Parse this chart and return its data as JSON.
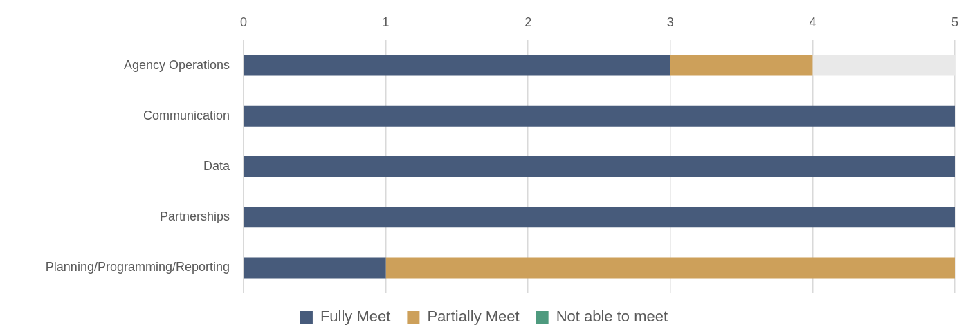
{
  "chart_data": {
    "type": "bar",
    "orientation": "horizontal",
    "stacked": true,
    "categories": [
      "Agency Operations",
      "Communication",
      "Data",
      "Partnerships",
      "Planning/Programming/Reporting"
    ],
    "series": [
      {
        "name": "Fully Meet",
        "color": "#475b7b",
        "values": [
          3,
          5,
          5,
          5,
          1
        ]
      },
      {
        "name": "Partially Meet",
        "color": "#cda05a",
        "values": [
          1,
          0,
          0,
          0,
          4
        ]
      },
      {
        "name": "Not able to meet",
        "color": "#4e9a7e",
        "values": [
          0,
          0,
          0,
          0,
          0
        ]
      },
      {
        "color": "#e9e9e9",
        "values": [
          1,
          0,
          0,
          0,
          0
        ]
      }
    ],
    "xlim": [
      0,
      5
    ],
    "xticks": [
      0,
      1,
      2,
      3,
      4,
      5
    ],
    "grid": "x",
    "legend": "bottom"
  }
}
